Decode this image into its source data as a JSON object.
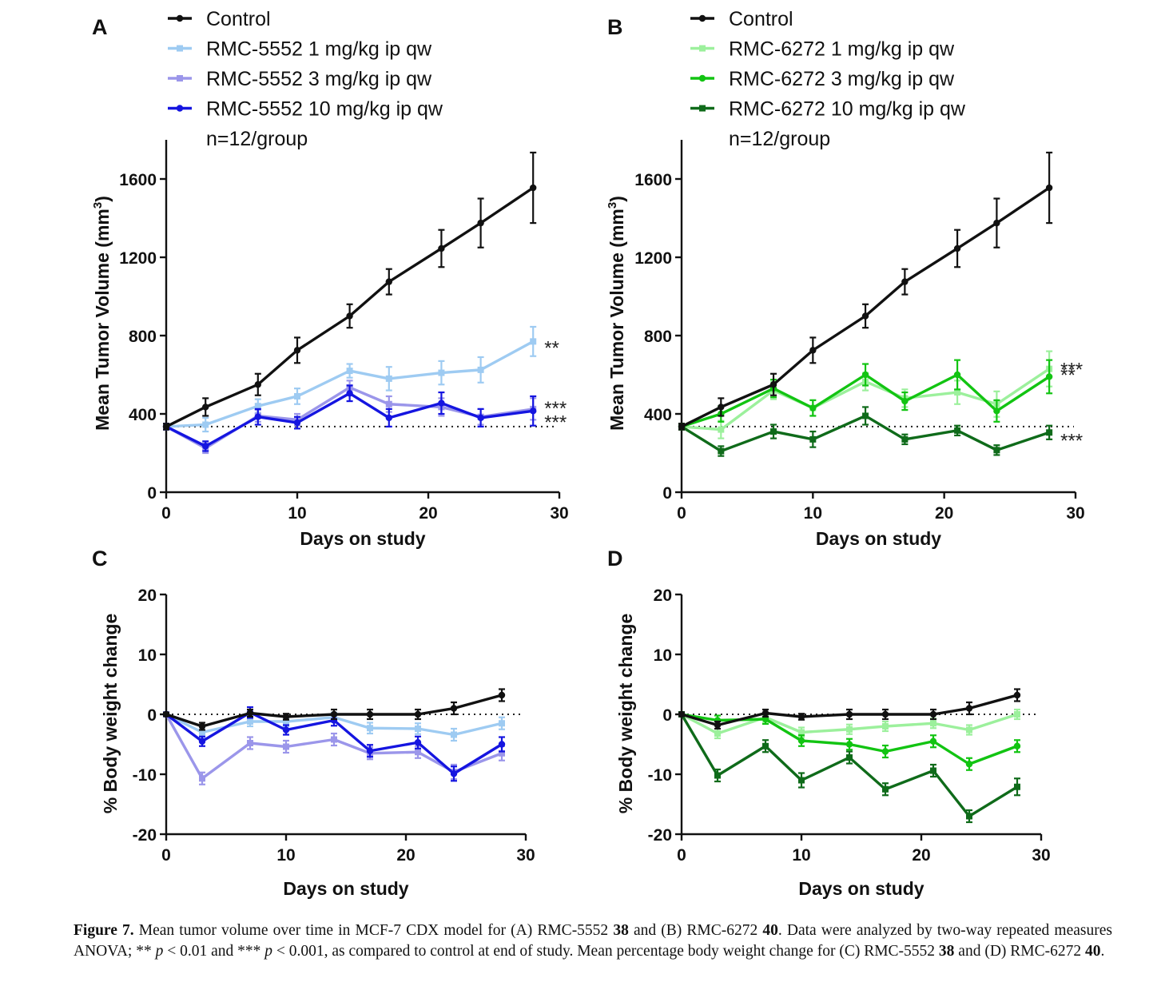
{
  "figure": {
    "caption": {
      "label": "Figure 7.",
      "t1": " Mean tumor volume over time in MCF-7 CDX model for (A) RMC-5552 ",
      "c1": "38",
      "t2": " and (B) RMC-6272 ",
      "c2": "40",
      "t3": ". Data were analyzed by two-way repeated measures ANOVA; ** ",
      "p1": "p",
      "t4": " < 0.01 and *** ",
      "p2": "p",
      "t5": " < 0.001, as compared to control at end of study. Mean percentage body weight change for (C) RMC-5552 ",
      "c3": "38",
      "t6": " and (D) RMC-6272 ",
      "c4": "40",
      "t7": "."
    }
  },
  "chart_data": [
    {
      "panel": "A",
      "type": "line",
      "xlabel": "Days on study",
      "ylabel": "Mean Tumor Volume (mm",
      "ylabel_sup": "3",
      "ylabel_end": ")",
      "xlim": [
        0,
        30
      ],
      "ylim": [
        0,
        1800
      ],
      "xticks": [
        0,
        10,
        20,
        30
      ],
      "yticks": [
        0,
        400,
        800,
        1200,
        1600
      ],
      "baseline": 335,
      "legend_note": "n=12/group",
      "series": [
        {
          "name": "Control",
          "color": "#111111",
          "marker": "circle",
          "x": [
            0,
            3,
            7,
            10,
            14,
            17,
            21,
            24,
            28
          ],
          "y": [
            335,
            435,
            550,
            725,
            900,
            1075,
            1245,
            1375,
            1555
          ],
          "err": [
            15,
            45,
            55,
            65,
            60,
            65,
            95,
            125,
            180
          ]
        },
        {
          "name": "RMC-5552 1 mg/kg ip qw",
          "color": "#9ecbf2",
          "marker": "square",
          "x": [
            0,
            3,
            7,
            10,
            14,
            17,
            21,
            24,
            28
          ],
          "y": [
            335,
            345,
            440,
            490,
            620,
            580,
            610,
            625,
            770
          ],
          "err": [
            15,
            35,
            35,
            40,
            35,
            60,
            60,
            65,
            75
          ],
          "sig": "**"
        },
        {
          "name": "RMC-5552 3 mg/kg ip qw",
          "color": "#9b96ea",
          "marker": "square",
          "x": [
            0,
            3,
            7,
            10,
            14,
            17,
            21,
            24,
            28
          ],
          "y": [
            335,
            225,
            390,
            370,
            535,
            450,
            435,
            385,
            425
          ],
          "err": [
            15,
            25,
            30,
            30,
            35,
            40,
            45,
            40,
            55
          ],
          "sig": "***"
        },
        {
          "name": "RMC-5552 10 mg/kg ip qw",
          "color": "#1515e0",
          "marker": "circle",
          "x": [
            0,
            3,
            7,
            10,
            14,
            17,
            21,
            24,
            28
          ],
          "y": [
            335,
            235,
            385,
            355,
            505,
            380,
            455,
            380,
            415
          ],
          "err": [
            15,
            25,
            40,
            30,
            40,
            45,
            55,
            45,
            75
          ],
          "sig": "***"
        }
      ]
    },
    {
      "panel": "B",
      "type": "line",
      "xlabel": "Days on study",
      "ylabel": "Mean Tumor Volume (mm",
      "ylabel_sup": "3",
      "ylabel_end": ")",
      "xlim": [
        0,
        30
      ],
      "ylim": [
        0,
        1800
      ],
      "xticks": [
        0,
        10,
        20,
        30
      ],
      "yticks": [
        0,
        400,
        800,
        1200,
        1600
      ],
      "baseline": 335,
      "legend_note": "n=12/group",
      "series": [
        {
          "name": "Control",
          "color": "#111111",
          "marker": "circle",
          "x": [
            0,
            3,
            7,
            10,
            14,
            17,
            21,
            24,
            28
          ],
          "y": [
            335,
            435,
            550,
            725,
            900,
            1075,
            1245,
            1375,
            1555
          ],
          "err": [
            15,
            45,
            55,
            65,
            60,
            65,
            95,
            125,
            180
          ]
        },
        {
          "name": "RMC-6272 1 mg/kg ip qw",
          "color": "#9cf09c",
          "marker": "square",
          "x": [
            0,
            3,
            7,
            10,
            14,
            17,
            21,
            24,
            28
          ],
          "y": [
            335,
            320,
            520,
            430,
            565,
            480,
            510,
            450,
            630
          ],
          "err": [
            15,
            45,
            45,
            40,
            45,
            45,
            60,
            65,
            90
          ],
          "sig": "**"
        },
        {
          "name": "RMC-6272 3 mg/kg ip qw",
          "color": "#12c412",
          "marker": "circle",
          "x": [
            0,
            3,
            7,
            10,
            14,
            17,
            21,
            24,
            28
          ],
          "y": [
            335,
            400,
            530,
            430,
            600,
            465,
            600,
            415,
            590
          ],
          "err": [
            15,
            40,
            45,
            40,
            55,
            45,
            75,
            55,
            85
          ],
          "sig": "***"
        },
        {
          "name": "RMC-6272 10 mg/kg ip qw",
          "color": "#0f6b1a",
          "marker": "square",
          "x": [
            0,
            3,
            7,
            10,
            14,
            17,
            21,
            24,
            28
          ],
          "y": [
            335,
            210,
            310,
            270,
            390,
            270,
            315,
            215,
            305
          ],
          "err": [
            15,
            25,
            35,
            40,
            45,
            25,
            25,
            25,
            35
          ],
          "sig": "***"
        }
      ]
    },
    {
      "panel": "C",
      "type": "line",
      "xlabel": "Days on study",
      "ylabel": "% Body weight change",
      "xlim": [
        0,
        30
      ],
      "ylim": [
        -20,
        20
      ],
      "xticks": [
        0,
        10,
        20,
        30
      ],
      "yticks": [
        -20,
        -10,
        0,
        10,
        20
      ],
      "baseline": 0,
      "series": [
        {
          "name": "Control",
          "color": "#111111",
          "marker": "circle",
          "x": [
            0,
            3,
            7,
            10,
            14,
            17,
            21,
            24,
            28
          ],
          "y": [
            0,
            -2.0,
            0.2,
            -0.4,
            0,
            0,
            0,
            1.0,
            3.2
          ],
          "err": [
            0.3,
            0.6,
            0.6,
            0.5,
            0.8,
            0.8,
            0.8,
            1.0,
            1.0
          ]
        },
        {
          "name": "RMC-5552 1 mg/kg ip qw",
          "color": "#9ecbf2",
          "marker": "square",
          "x": [
            0,
            3,
            7,
            10,
            14,
            17,
            21,
            24,
            28
          ],
          "y": [
            0,
            -3.0,
            -1.2,
            -1.2,
            -0.5,
            -2.3,
            -2.4,
            -3.4,
            -1.5
          ],
          "err": [
            0.3,
            0.8,
            0.8,
            0.8,
            0.8,
            0.9,
            0.9,
            1.0,
            1.0
          ]
        },
        {
          "name": "RMC-5552 3 mg/kg ip qw",
          "color": "#9b96ea",
          "marker": "square",
          "x": [
            0,
            3,
            7,
            10,
            14,
            17,
            21,
            24,
            28
          ],
          "y": [
            0,
            -10.7,
            -4.8,
            -5.4,
            -4.2,
            -6.5,
            -6.3,
            -9.6,
            -6.5
          ],
          "err": [
            0.3,
            1.0,
            1.0,
            1.0,
            1.0,
            1.0,
            1.0,
            1.2,
            1.2
          ]
        },
        {
          "name": "RMC-5552 10 mg/kg ip qw",
          "color": "#1515e0",
          "marker": "circle",
          "x": [
            0,
            3,
            7,
            10,
            14,
            17,
            21,
            24,
            28
          ],
          "y": [
            0,
            -4.5,
            0.3,
            -2.6,
            -1.0,
            -6.1,
            -4.7,
            -9.9,
            -5.0
          ],
          "err": [
            0.3,
            0.8,
            0.9,
            0.8,
            0.9,
            1.0,
            1.0,
            1.2,
            1.2
          ]
        }
      ]
    },
    {
      "panel": "D",
      "type": "line",
      "xlabel": "Days on study",
      "ylabel": "% Body weight change",
      "xlim": [
        0,
        30
      ],
      "ylim": [
        -20,
        20
      ],
      "xticks": [
        0,
        10,
        20,
        30
      ],
      "yticks": [
        -20,
        -10,
        0,
        10,
        20
      ],
      "baseline": 0,
      "series": [
        {
          "name": "Control",
          "color": "#111111",
          "marker": "circle",
          "x": [
            0,
            3,
            7,
            10,
            14,
            17,
            21,
            24,
            28
          ],
          "y": [
            0,
            -1.8,
            0.2,
            -0.4,
            0,
            0,
            0,
            1.0,
            3.2
          ],
          "err": [
            0.3,
            0.6,
            0.6,
            0.5,
            0.8,
            0.8,
            0.8,
            1.0,
            1.0
          ]
        },
        {
          "name": "RMC-6272 1 mg/kg ip qw",
          "color": "#9cf09c",
          "marker": "square",
          "x": [
            0,
            3,
            7,
            10,
            14,
            17,
            21,
            24,
            28
          ],
          "y": [
            0,
            -3.2,
            -0.5,
            -3.0,
            -2.5,
            -2.0,
            -1.5,
            -2.6,
            0
          ],
          "err": [
            0.3,
            0.8,
            0.8,
            0.8,
            0.8,
            0.8,
            0.8,
            0.8,
            0.8
          ]
        },
        {
          "name": "RMC-6272 3 mg/kg ip qw",
          "color": "#12c412",
          "marker": "circle",
          "x": [
            0,
            3,
            7,
            10,
            14,
            17,
            21,
            24,
            28
          ],
          "y": [
            0,
            -1.0,
            -0.8,
            -4.4,
            -5.0,
            -6.2,
            -4.5,
            -8.3,
            -5.3
          ],
          "err": [
            0.3,
            0.8,
            0.8,
            0.9,
            0.9,
            1.0,
            1.0,
            1.0,
            1.0
          ]
        },
        {
          "name": "RMC-6272 10 mg/kg ip qw",
          "color": "#0f6b1a",
          "marker": "square",
          "x": [
            0,
            3,
            7,
            10,
            14,
            17,
            21,
            24,
            28
          ],
          "y": [
            0,
            -10.2,
            -5.3,
            -11.0,
            -7.2,
            -12.5,
            -9.4,
            -17.0,
            -12.1
          ],
          "err": [
            0.3,
            1.0,
            1.0,
            1.2,
            1.0,
            1.0,
            1.0,
            1.0,
            1.4
          ]
        }
      ]
    }
  ]
}
